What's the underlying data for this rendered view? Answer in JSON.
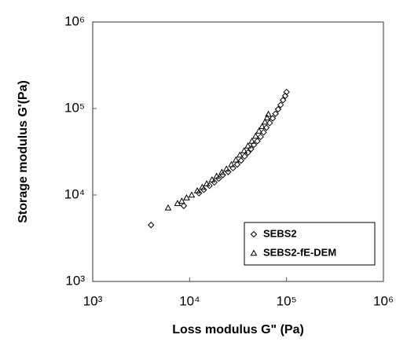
{
  "chart_data": {
    "type": "scatter",
    "x_label": "Loss modulus G\" (Pa)",
    "y_label": "Storage modulus G'(Pa)",
    "log_x": true,
    "log_y": true,
    "xlim": [
      1000,
      1000000
    ],
    "ylim": [
      1000,
      1000000
    ],
    "xticks": [
      {
        "value": 1000,
        "label": "10³"
      },
      {
        "value": 10000,
        "label": "10⁴"
      },
      {
        "value": 100000,
        "label": "10⁵"
      },
      {
        "value": 1000000,
        "label": "10⁶"
      }
    ],
    "yticks": [
      {
        "value": 1000,
        "label": "10³"
      },
      {
        "value": 10000,
        "label": "10⁴"
      },
      {
        "value": 100000,
        "label": "10⁵"
      },
      {
        "value": 1000000,
        "label": "10⁶"
      }
    ],
    "legend": "lower right",
    "series": [
      {
        "name": "SEBS2",
        "marker": "diamond",
        "color": "#000000",
        "x": [
          4000,
          8700,
          12500,
          14000,
          16000,
          18000,
          20000,
          22000,
          25000,
          28000,
          31000,
          34000,
          37000,
          40000,
          43000,
          46000,
          50000,
          54000,
          58000,
          62000,
          67000,
          72000,
          77000,
          82000,
          87000,
          92000,
          97000,
          100000
        ],
        "values": [
          4500,
          7500,
          10500,
          11500,
          12800,
          14000,
          15500,
          17000,
          18500,
          20500,
          22500,
          25000,
          28000,
          31000,
          34000,
          38000,
          42000,
          47000,
          53000,
          60000,
          68000,
          77000,
          87000,
          98000,
          110000,
          125000,
          140000,
          155000
        ]
      },
      {
        "name": "SEBS2-fE-DEM",
        "marker": "triangle",
        "color": "#000000",
        "x": [
          6000,
          7500,
          8300,
          9300,
          10500,
          12000,
          13500,
          15000,
          17000,
          19000,
          21500,
          24000,
          27000,
          30000,
          33000,
          36500,
          40000,
          44000,
          48000,
          52000,
          56000,
          60000,
          63000,
          65000
        ],
        "values": [
          7100,
          8000,
          8500,
          9300,
          10000,
          11200,
          12300,
          13500,
          15000,
          16500,
          18300,
          20000,
          22500,
          25500,
          29000,
          32500,
          37000,
          42000,
          48000,
          55000,
          62000,
          70000,
          78000,
          86000
        ]
      }
    ]
  }
}
